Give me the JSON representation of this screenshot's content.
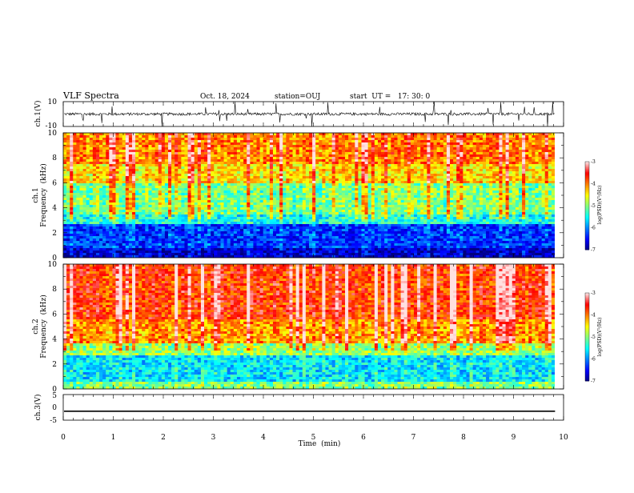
{
  "header": {
    "title": "VLF Spectra",
    "date": "Oct. 18, 2024",
    "station": "station=OUJ",
    "start": "start  UT =   17: 30: 0"
  },
  "chart_data": [
    {
      "type": "line",
      "name": "waveform-ch1",
      "ylabel": "ch.1(V)",
      "ylim": [
        -10,
        10
      ],
      "yticks": [
        "10",
        "-10"
      ],
      "baseline": 0,
      "color": "#000000"
    },
    {
      "type": "heatmap",
      "name": "spectrogram-ch1",
      "ylabel_line1": "ch.1",
      "ylabel_line2": "Frequency  (kHz)",
      "ylim": [
        0,
        10
      ],
      "yticks": [
        "0",
        "2",
        "4",
        "6",
        "8",
        "10"
      ],
      "band_levels": [
        {
          "f_low": 0,
          "f_high": 0.8,
          "level": -6.7
        },
        {
          "f_low": 0.8,
          "f_high": 2.6,
          "level": -6.3
        },
        {
          "f_low": 2.6,
          "f_high": 3.4,
          "level": -5.4
        },
        {
          "f_low": 3.4,
          "f_high": 6.0,
          "level": -5.0
        },
        {
          "f_low": 6.0,
          "f_high": 7.5,
          "level": -4.4
        },
        {
          "f_low": 7.5,
          "f_high": 10,
          "level": -4.0
        }
      ],
      "colorbar": {
        "label": "log(PSD)(V²/Hz)",
        "min": -7,
        "max": -3,
        "ticks": [
          "-3",
          "-4",
          "-5",
          "-6",
          "-7"
        ]
      }
    },
    {
      "type": "heatmap",
      "name": "spectrogram-ch2",
      "ylabel_line1": "ch.2",
      "ylabel_line2": "Frequency  (kHz)",
      "ylim": [
        0,
        10
      ],
      "yticks": [
        "0",
        "2",
        "4",
        "6",
        "8",
        "10"
      ],
      "band_levels": [
        {
          "f_low": 0,
          "f_high": 0.6,
          "level": -5.0
        },
        {
          "f_low": 0.6,
          "f_high": 2.6,
          "level": -5.6
        },
        {
          "f_low": 2.6,
          "f_high": 3.6,
          "level": -4.9
        },
        {
          "f_low": 3.6,
          "f_high": 5.5,
          "level": -4.1
        },
        {
          "f_low": 5.5,
          "f_high": 10,
          "level": -3.7
        }
      ],
      "colorbar": {
        "label": "log(PSD)(V²/Hz)",
        "min": -7,
        "max": -3,
        "ticks": [
          "-3",
          "-4",
          "-5",
          "-6",
          "-7"
        ]
      }
    },
    {
      "type": "line",
      "name": "waveform-ch3",
      "ylabel": "ch.3(V)",
      "ylim": [
        -5,
        5
      ],
      "yticks": [
        "5",
        "0",
        "-5"
      ],
      "baseline": -1.5,
      "color": "#000000"
    }
  ],
  "xaxis": {
    "label": "Time  (min)",
    "xlim": [
      0,
      10
    ],
    "ticks": [
      "0",
      "1",
      "2",
      "3",
      "4",
      "5",
      "6",
      "7",
      "8",
      "9",
      "10"
    ],
    "data_end": 9.83
  },
  "colormap": [
    "#000080",
    "#0000ff",
    "#0080ff",
    "#00ffff",
    "#80ff80",
    "#ffff00",
    "#ff8000",
    "#ff0000",
    "#ffe0e0"
  ]
}
